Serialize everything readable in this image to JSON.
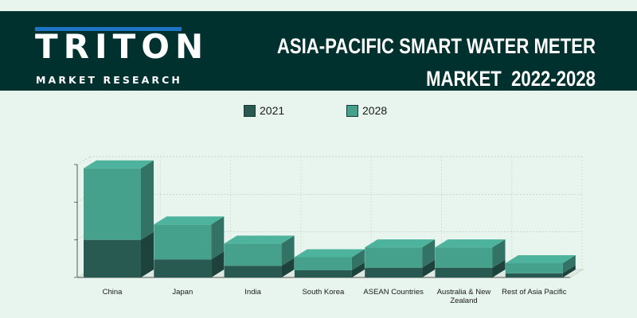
{
  "header": {
    "logo_text": "TRITON",
    "logo_subtitle": "MARKET RESEARCH",
    "title_line1": "ASIA-PACIFIC SMART WATER METER",
    "title_line2": "MARKET  2022-2028"
  },
  "colors": {
    "header_bg": "#00312f",
    "page_bg": "#e8f5ee",
    "series_2021": "#285a52",
    "series_2028": "#45a08c",
    "logo_accent": "#1d73c4"
  },
  "chart_data": {
    "type": "bar",
    "stacked": true,
    "three_d": true,
    "categories": [
      "China",
      "Japan",
      "India",
      "South Korea",
      "ASEAN Countries",
      "Australia & New Zealand",
      "Rest of Asia Pacific"
    ],
    "series": [
      {
        "name": "2021",
        "values": [
          1.0,
          0.48,
          0.31,
          0.19,
          0.26,
          0.26,
          0.11
        ]
      },
      {
        "name": "2028",
        "values": [
          1.9,
          0.93,
          0.59,
          0.35,
          0.54,
          0.54,
          0.27
        ]
      }
    ],
    "ylim": [
      0,
      3.0
    ],
    "grid": true,
    "legend_position": "top"
  }
}
